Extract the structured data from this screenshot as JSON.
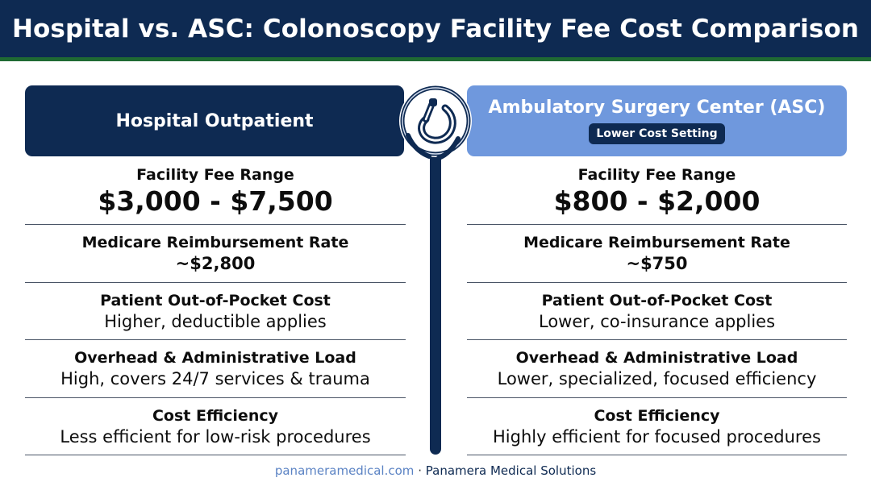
{
  "title": "Hospital vs. ASC: Colonoscopy Facility Fee Cost Comparison",
  "left": {
    "heading": "Hospital Outpatient",
    "rows": [
      {
        "label": "Facility Fee Range",
        "value": "$3,000 - $7,500"
      },
      {
        "label": "Medicare Reimbursement Rate",
        "value": "~$2,800"
      },
      {
        "label": "Patient Out-of-Pocket Cost",
        "value": "Higher, deductible applies"
      },
      {
        "label": "Overhead & Administrative Load",
        "value": "High, covers 24/7 services & trauma"
      },
      {
        "label": "Cost Efficiency",
        "value": "Less efficient for low-risk procedures"
      }
    ]
  },
  "right": {
    "heading": "Ambulatory Surgery Center (ASC)",
    "badge": "Lower Cost Setting",
    "rows": [
      {
        "label": "Facility Fee Range",
        "value": "$800 - $2,000"
      },
      {
        "label": "Medicare Reimbursement Rate",
        "value": "~$750"
      },
      {
        "label": "Patient Out-of-Pocket Cost",
        "value": "Lower, co-insurance applies"
      },
      {
        "label": "Overhead & Administrative Load",
        "value": "Lower, specialized, focused efficiency"
      },
      {
        "label": "Cost Efficiency",
        "value": "Highly efficient for focused procedures"
      }
    ]
  },
  "emblem": {
    "icon": "colonoscope-icon"
  },
  "footer": {
    "url": "panameramedical.com",
    "separator": "·",
    "company": "Panamera Medical Solutions"
  },
  "colors": {
    "navy": "#0e2a52",
    "light_blue": "#6f98dd",
    "green": "#1f6a33",
    "link_blue": "#5b83c4"
  }
}
